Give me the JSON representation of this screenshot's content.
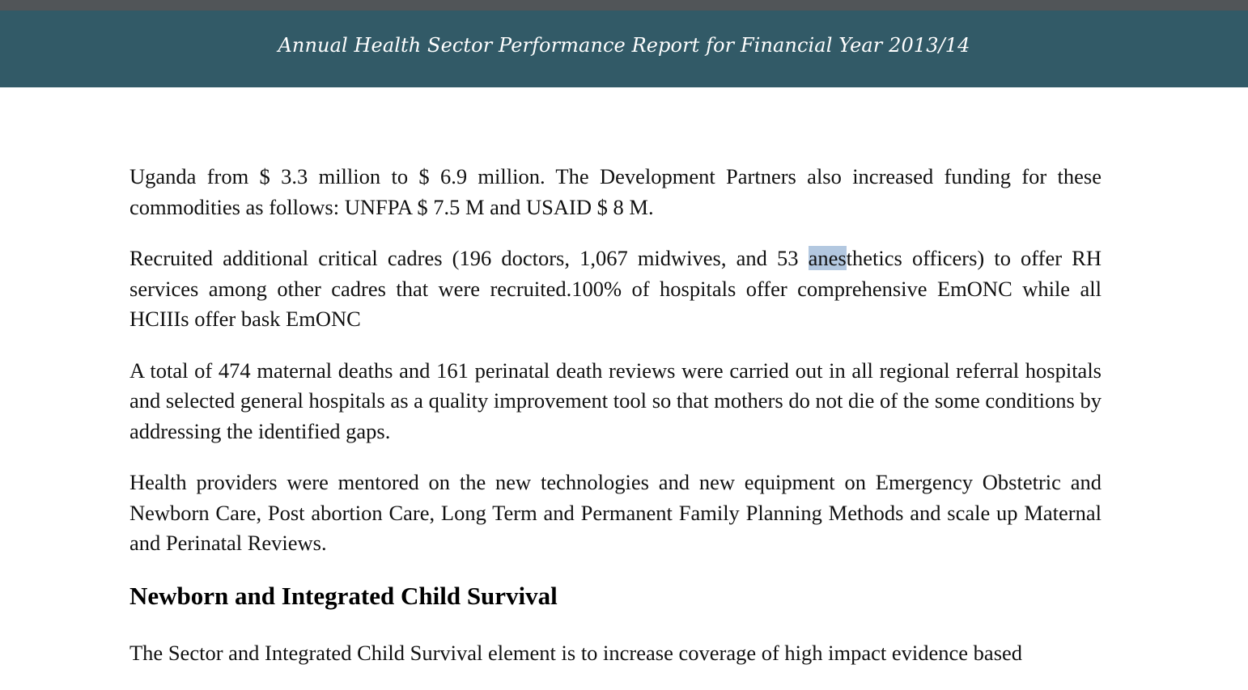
{
  "header": {
    "title": "Annual Health Sector Performance Report for Financial Year 2013/14"
  },
  "content": {
    "para1": "Uganda from $ 3.3 million to $ 6.9 million.  The Development Partners also increased funding for these commodities as follows: UNFPA $ 7.5 M and USAID $ 8 M.",
    "para2_before": "Recruited additional critical cadres (196 doctors, 1,067 midwives, and 53 ",
    "para2_selected": "anes",
    "para2_after": "thetics officers) to offer RH services among other cadres that were recruited.100% of hospitals offer comprehensive EmONC while all HCIIIs offer bask EmONC",
    "para3": "A total of 474 maternal deaths and 161 perinatal death reviews were carried out in all regional referral hospitals and selected general hospitals as a quality improvement tool so that mothers do not die of the some conditions by addressing the identified gaps.",
    "para4": "Health providers were mentored on the new technologies and new equipment on Emergency Obstetric and Newborn Care, Post abortion Care, Long Term and Permanent Family Planning Methods and scale up Maternal and Perinatal Reviews.",
    "heading": "Newborn and Integrated Child Survival",
    "cut_line": "The Sector and Integrated Child Survival element is to increase coverage of high impact evidence based"
  },
  "colors": {
    "header_bg": "#325a67",
    "top_strip": "#515558",
    "selection": "#b3c8e0"
  }
}
